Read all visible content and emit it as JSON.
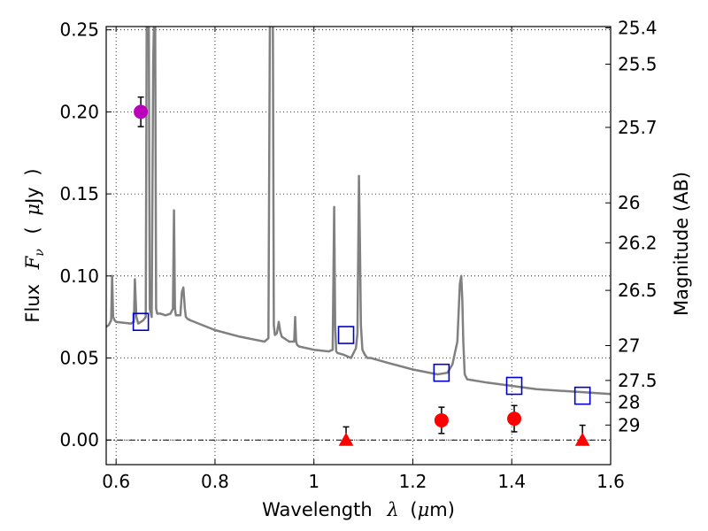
{
  "chart_data": {
    "type": "scatter",
    "xlabel_parts": [
      "Wavelength",
      "λ",
      "(",
      "μ",
      "m)"
    ],
    "ylabel_parts": [
      "Flux",
      "F",
      "ν",
      "(",
      "μ",
      "Jy",
      ")"
    ],
    "right_ylabel": "Magnitude (AB)",
    "xlim": [
      0.58,
      1.6
    ],
    "ylim": [
      -0.015,
      0.252
    ],
    "grid": true,
    "x_ticks": [
      {
        "value": 0.6,
        "label": "0.6"
      },
      {
        "value": 0.8,
        "label": "0.8"
      },
      {
        "value": 1.0,
        "label": "1"
      },
      {
        "value": 1.2,
        "label": "1.2"
      },
      {
        "value": 1.4,
        "label": "1.4"
      },
      {
        "value": 1.6,
        "label": "1.6"
      }
    ],
    "y_ticks": [
      {
        "value": 0.0,
        "label": "0.00"
      },
      {
        "value": 0.05,
        "label": "0.05"
      },
      {
        "value": 0.1,
        "label": "0.10"
      },
      {
        "value": 0.15,
        "label": "0.15"
      },
      {
        "value": 0.2,
        "label": "0.20"
      },
      {
        "value": 0.25,
        "label": "0.25"
      }
    ],
    "mag_ticks": [
      {
        "mag": 25.4,
        "label": "25.4"
      },
      {
        "mag": 25.5,
        "label": "25.5"
      },
      {
        "mag": 25.7,
        "label": "25.7"
      },
      {
        "mag": 26,
        "label": "26"
      },
      {
        "mag": 26.2,
        "label": "26.2"
      },
      {
        "mag": 26.5,
        "label": "26.5"
      },
      {
        "mag": 27,
        "label": "27"
      },
      {
        "mag": 27.5,
        "label": "27.5"
      },
      {
        "mag": 28,
        "label": "28"
      },
      {
        "mag": 29,
        "label": "29"
      }
    ],
    "colors": {
      "spectrum": "#808080",
      "model": "#0000cc",
      "detection": "#ff0000",
      "upper_limit": "#ff0000",
      "highlight": "#bb00bb",
      "errorbar": "#000000",
      "zero_line": "#000000"
    },
    "spectrum": {
      "x": [
        0.58,
        0.585,
        0.59,
        0.592,
        0.594,
        0.597,
        0.6,
        0.63,
        0.636,
        0.638,
        0.641,
        0.645,
        0.655,
        0.66,
        0.662,
        0.664,
        0.666,
        0.668,
        0.672,
        0.675,
        0.677,
        0.679,
        0.681,
        0.683,
        0.69,
        0.7,
        0.71,
        0.715,
        0.717,
        0.719,
        0.721,
        0.724,
        0.73,
        0.733,
        0.736,
        0.739,
        0.741,
        0.744,
        0.75,
        0.8,
        0.85,
        0.9,
        0.908,
        0.911,
        0.913,
        0.915,
        0.917,
        0.919,
        0.921,
        0.925,
        0.929,
        0.932,
        0.935,
        0.95,
        0.96,
        0.962,
        0.964,
        0.966,
        0.97,
        1.0,
        1.03,
        1.038,
        1.041,
        1.043,
        1.045,
        1.048,
        1.06,
        1.075,
        1.085,
        1.088,
        1.091,
        1.093,
        1.095,
        1.098,
        1.103,
        1.108,
        1.115,
        1.15,
        1.2,
        1.25,
        1.27,
        1.28,
        1.29,
        1.295,
        1.298,
        1.3,
        1.302,
        1.305,
        1.31,
        1.35,
        1.4,
        1.45,
        1.5,
        1.55,
        1.6
      ],
      "y": [
        0.069,
        0.07,
        0.073,
        0.1,
        0.075,
        0.073,
        0.072,
        0.071,
        0.072,
        0.098,
        0.075,
        0.071,
        0.073,
        0.075,
        0.26,
        0.26,
        0.26,
        0.08,
        0.075,
        0.23,
        0.26,
        0.26,
        0.08,
        0.077,
        0.077,
        0.076,
        0.077,
        0.08,
        0.14,
        0.08,
        0.076,
        0.076,
        0.076,
        0.09,
        0.093,
        0.08,
        0.075,
        0.074,
        0.073,
        0.067,
        0.063,
        0.06,
        0.062,
        0.26,
        0.26,
        0.26,
        0.26,
        0.07,
        0.064,
        0.065,
        0.072,
        0.066,
        0.063,
        0.06,
        0.06,
        0.075,
        0.06,
        0.058,
        0.057,
        0.055,
        0.054,
        0.055,
        0.142,
        0.07,
        0.054,
        0.053,
        0.052,
        0.05,
        0.056,
        0.065,
        0.161,
        0.12,
        0.07,
        0.055,
        0.052,
        0.05,
        0.05,
        0.047,
        0.043,
        0.04,
        0.041,
        0.046,
        0.06,
        0.095,
        0.1,
        0.085,
        0.06,
        0.04,
        0.037,
        0.035,
        0.033,
        0.031,
        0.03,
        0.029,
        0.028
      ]
    },
    "model_points": {
      "x": [
        0.65,
        1.065,
        1.258,
        1.405,
        1.543
      ],
      "y": [
        0.072,
        0.064,
        0.041,
        0.033,
        0.027
      ]
    },
    "detections": {
      "x": [
        1.258,
        1.405
      ],
      "y": [
        0.012,
        0.013
      ],
      "err": [
        0.008,
        0.008
      ]
    },
    "upper_limits": {
      "x": [
        1.065,
        1.543
      ],
      "y": [
        0.0,
        0.0
      ],
      "err_top": [
        0.008,
        0.009
      ]
    },
    "highlight_point": {
      "x": 0.65,
      "y": 0.2,
      "err": 0.009
    }
  }
}
